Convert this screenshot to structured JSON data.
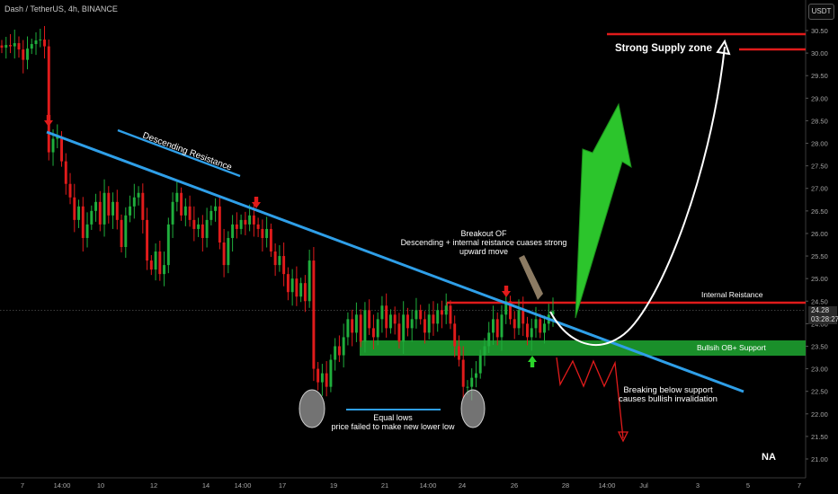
{
  "header": {
    "symbol_title": "Dash / TetherUS, 4h, BINANCE"
  },
  "scale_badge": "USDT",
  "current_price": {
    "price": "24.28",
    "countdown": "03:28:27"
  },
  "colors": {
    "bull": "#1fae3c",
    "bear": "#e01b1b",
    "trendline": "#2f9fe8",
    "support_zone": "#1a8f2a",
    "resistance": "#e01b1b"
  },
  "annotations": {
    "supply_zone": "Strong Supply zone",
    "descending_resistance": "Descending Resistance",
    "internal_resistance": "Internal Reistance",
    "support_zone": "Bullsih OB+ Support",
    "breakout_line1": "Breakout OF",
    "breakout_line2": "Descending + internal reistance cuases strong",
    "breakout_line3": "upward move",
    "breakdown_line1": "Breaking below support",
    "breakdown_line2": "causes bullish invalidation",
    "equal_lows_line1": "Equal lows",
    "equal_lows_line2": "price failed to make new lower low",
    "na_mark": "NA"
  },
  "chart_data": {
    "type": "candlestick",
    "title": "Dash / TetherUS, 4h, BINANCE",
    "y_unit": "USDT",
    "ylim": [
      20.75,
      31.0
    ],
    "y_ticks": [
      "30.50",
      "30.00",
      "29.50",
      "29.00",
      "28.50",
      "28.00",
      "27.50",
      "27.00",
      "26.50",
      "26.00",
      "25.50",
      "25.00",
      "24.50",
      "24.00",
      "23.50",
      "23.00",
      "22.50",
      "22.00",
      "21.50",
      "21.00"
    ],
    "x_ticks": [
      "7",
      "14:00",
      "10",
      "12",
      "14",
      "14:00",
      "17",
      "19",
      "21",
      "14:00",
      "24",
      "26",
      "28",
      "14:00",
      "Jul",
      "3",
      "5",
      "7"
    ],
    "last_price": 24.28,
    "levels": {
      "strong_supply_zone": [
        30.0,
        30.4
      ],
      "internal_resistance": 24.5,
      "bullish_ob_support": [
        23.3,
        23.6
      ]
    },
    "closes": [
      30.12,
      30.18,
      30.15,
      30.22,
      30.08,
      29.85,
      30.1,
      30.2,
      30.28,
      30.3,
      30.15,
      27.8,
      28.1,
      28.15,
      27.6,
      27.1,
      26.8,
      26.3,
      26.6,
      25.9,
      26.2,
      26.5,
      26.7,
      26.2,
      26.9,
      26.4,
      26.7,
      26.3,
      25.7,
      26.4,
      26.6,
      26.8,
      26.9,
      26.3,
      25.4,
      25.2,
      25.6,
      25.1,
      25.3,
      26.2,
      26.7,
      26.9,
      26.4,
      26.6,
      26.3,
      26.1,
      26.2,
      25.9,
      26.3,
      26.5,
      26.6,
      25.8,
      25.3,
      25.9,
      26.2,
      26.1,
      26.3,
      26.2,
      26.4,
      26.2,
      26.1,
      25.9,
      26.1,
      25.6,
      25.3,
      25.5,
      25.1,
      24.7,
      25.0,
      24.6,
      24.9,
      24.5,
      25.4,
      23.0,
      22.7,
      22.9,
      22.6,
      23.2,
      23.5,
      23.3,
      23.7,
      24.1,
      23.8,
      24.2,
      23.6,
      24.3,
      23.9,
      23.7,
      24.1,
      24.4,
      23.9,
      24.2,
      24.0,
      23.6,
      24.2,
      23.9,
      24.1,
      24.3,
      24.1,
      23.8,
      24.2,
      24.0,
      24.3,
      24.2,
      24.4,
      24.0,
      23.5,
      23.2,
      22.6,
      22.6,
      22.8,
      22.9,
      23.3,
      23.5,
      23.8,
      24.1,
      23.7,
      24.2,
      24.5,
      24.1,
      23.9,
      24.3,
      24.0,
      23.7,
      23.9,
      24.1,
      23.8,
      24.0,
      24.2,
      24.28
    ],
    "notes": [
      "Equal lows near 22.1 – 22.2",
      "Projected path: rise to strong supply zone near 30.3"
    ]
  }
}
